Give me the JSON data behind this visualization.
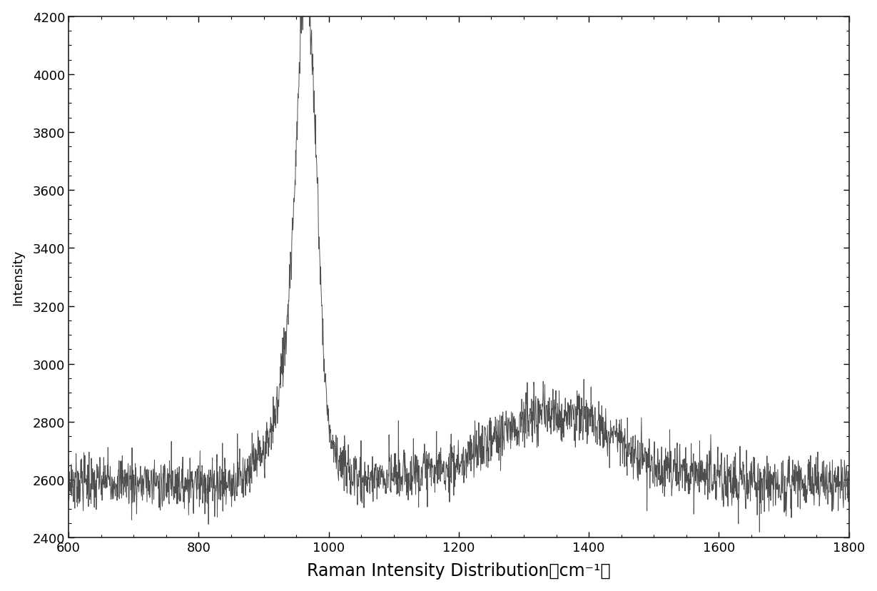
{
  "xlabel": "Raman Intensity Distribution（cm⁻¹）",
  "ylabel": "Intensity",
  "xlim": [
    600,
    1800
  ],
  "ylim": [
    2400,
    4200
  ],
  "xticks": [
    600,
    800,
    1000,
    1200,
    1400,
    1600,
    1800
  ],
  "yticks": [
    2400,
    2600,
    2800,
    3000,
    3200,
    3400,
    3600,
    3800,
    4000,
    4200
  ],
  "line_color": "#444444",
  "background_color": "#ffffff",
  "fig_background": "#ffffff",
  "xlabel_fontsize": 17,
  "ylabel_fontsize": 13,
  "tick_fontsize": 13
}
